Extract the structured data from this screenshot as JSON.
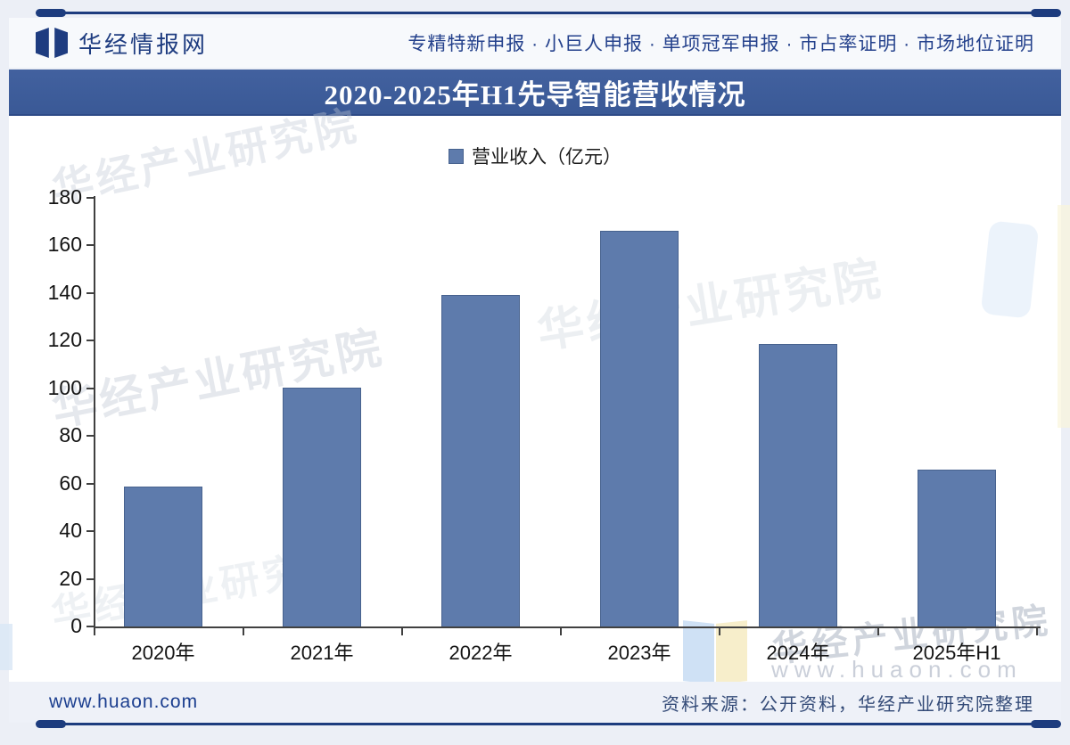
{
  "header": {
    "logo_text": "华经情报网",
    "services": "专精特新申报 · 小巨人申报 · 单项冠军申报 · 市占率证明 · 市场地位证明"
  },
  "banner": {
    "title": "2020-2025年H1先导智能营收情况",
    "bg": "#3c5c9b"
  },
  "legend": {
    "label": "营业收入（亿元）"
  },
  "chart_data": {
    "type": "bar",
    "title": "2020-2025年H1先导智能营收情况",
    "categories": [
      "2020年",
      "2021年",
      "2022年",
      "2023年",
      "2024年",
      "2025年H1"
    ],
    "series": [
      {
        "name": "营业收入（亿元）",
        "values": [
          58.6,
          100.4,
          139.3,
          166.3,
          118.6,
          66.0
        ]
      }
    ],
    "xlabel": "",
    "ylabel": "",
    "ylim": [
      0,
      180
    ],
    "yticks": [
      0,
      20,
      40,
      60,
      80,
      100,
      120,
      140,
      160,
      180
    ],
    "grid": false,
    "legend_position": "top-center",
    "bar_color": "#5e7bac",
    "bar_border_color": "#47628e",
    "axis_color": "#404040"
  },
  "watermark": {
    "brand": "华经产业研究院",
    "url": "www.huaon.com"
  },
  "footer": {
    "site": "www.huaon.com",
    "source": "资料来源：公开资料，华经产业研究院整理"
  },
  "colors": {
    "accent_navy": "#1e3c80",
    "rule": "#1d3c7e",
    "page_bg": "#eceff6"
  }
}
